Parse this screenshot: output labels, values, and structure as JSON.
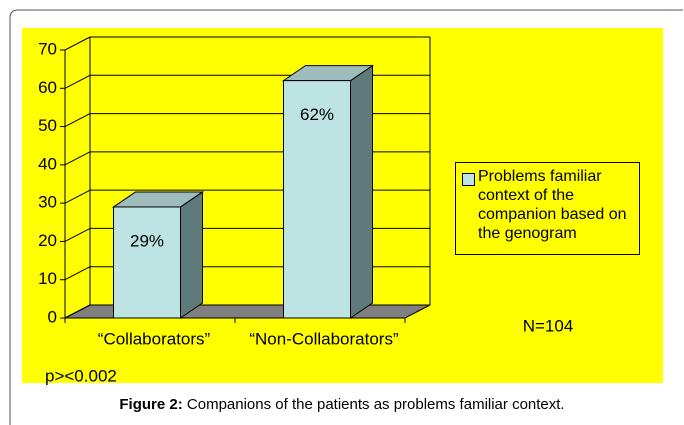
{
  "chart_data": {
    "type": "bar3d",
    "categories": [
      "“Collaborators”",
      "“Non-Collaborators”"
    ],
    "series": [
      {
        "name": "Problems familiar context of the companion based on the genogram",
        "color": "#bde3e3",
        "values": [
          29,
          62
        ],
        "value_labels": [
          "29%",
          "62%"
        ]
      }
    ],
    "ylim": [
      0,
      70
    ],
    "yticks": [
      0,
      10,
      20,
      30,
      40,
      50,
      60,
      70
    ],
    "annotations": [
      "N=104",
      "p><0.002"
    ]
  },
  "caption": {
    "label": "Figure 2:",
    "text": "Companions of the patients as problems familiar context."
  }
}
